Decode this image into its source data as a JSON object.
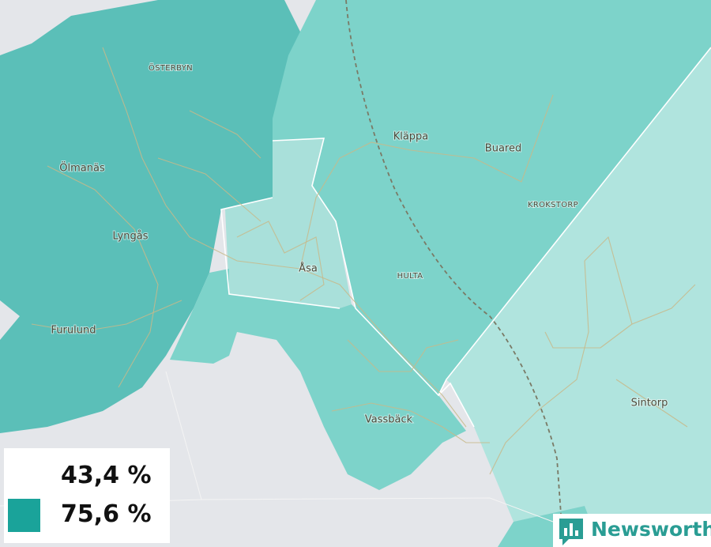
{
  "map": {
    "places": [
      "ÖSTERBYN",
      "Ölmanäs",
      "Lyngås",
      "Furulund",
      "Kläppa",
      "Buared",
      "KROKSTORP",
      "Åsa",
      "HULTA",
      "Vassbäck",
      "Sintorp"
    ],
    "legend": [
      {
        "label": "43,4 %",
        "color": "#ffffff"
      },
      {
        "label": "75,6 %",
        "color": "#1aa39a"
      }
    ],
    "brand": "Newsworthy"
  }
}
